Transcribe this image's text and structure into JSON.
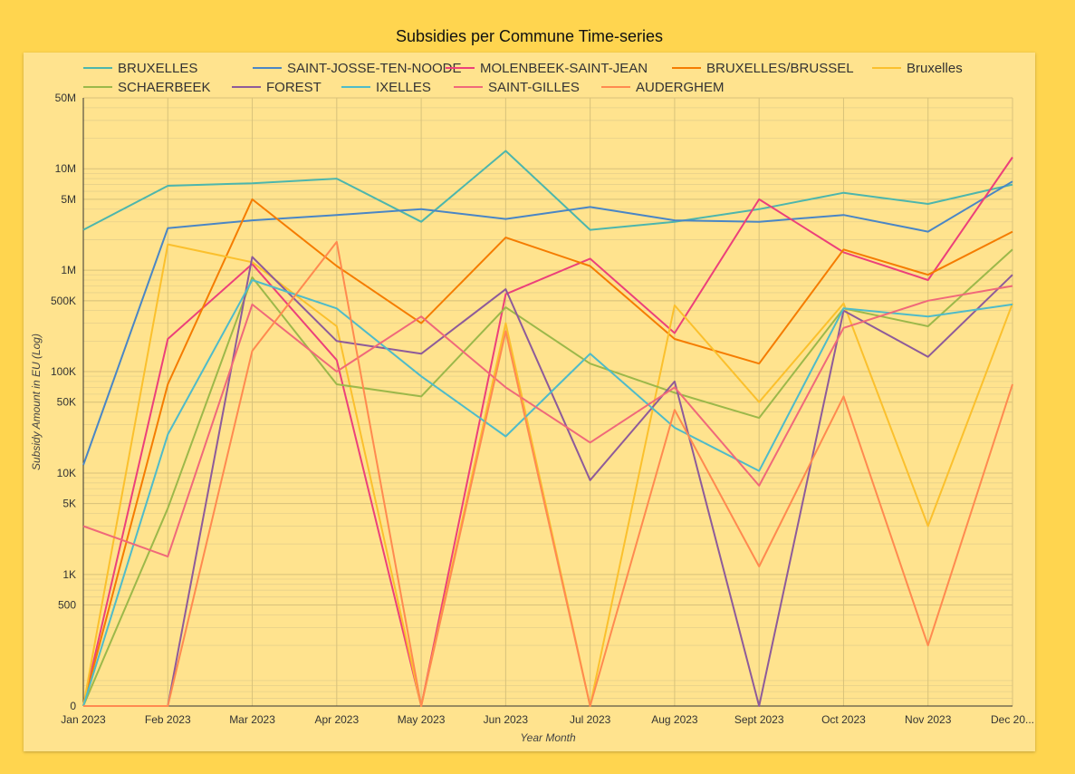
{
  "title": "Subsidies per Commune Time-series",
  "chart_data": {
    "type": "line",
    "title": "Subsidies per Commune Time-series",
    "xlabel": "Year Month",
    "ylabel": "Subsidy Amount in EU (Log)",
    "yscale": "log",
    "ylim": [
      0,
      50000000
    ],
    "grid": true,
    "legend_position": "top",
    "x": [
      "Jan 2023",
      "Feb 2023",
      "Mar 2023",
      "Apr 2023",
      "May 2023",
      "Jun 2023",
      "Jul 2023",
      "Aug 2023",
      "Sept 2023",
      "Oct 2023",
      "Nov 2023",
      "Dec 20..."
    ],
    "yticks": [
      {
        "value": 50000000,
        "label": "50M"
      },
      {
        "value": 10000000,
        "label": "10M"
      },
      {
        "value": 5000000,
        "label": "5M"
      },
      {
        "value": 1000000,
        "label": "1M"
      },
      {
        "value": 500000,
        "label": "500K"
      },
      {
        "value": 100000,
        "label": "100K"
      },
      {
        "value": 50000,
        "label": "50K"
      },
      {
        "value": 10000,
        "label": "10K"
      },
      {
        "value": 5000,
        "label": "5K"
      },
      {
        "value": 1000,
        "label": "1K"
      },
      {
        "value": 500,
        "label": "500"
      },
      {
        "value": 0,
        "label": "0"
      }
    ],
    "series": [
      {
        "name": "BRUXELLES",
        "color": "#4DB6AC",
        "values": [
          2500000,
          6800000,
          7200000,
          8000000,
          3000000,
          15000000,
          2500000,
          3000000,
          4000000,
          5800000,
          4500000,
          7000000
        ]
      },
      {
        "name": "SAINT-JOSSE-TEN-NOODE",
        "color": "#4A86C5",
        "values": [
          12000,
          2600000,
          3100000,
          3500000,
          4000000,
          3200000,
          4200000,
          3100000,
          3000000,
          3500000,
          2400000,
          7500000
        ]
      },
      {
        "name": "MOLENBEEK-SAINT-JEAN",
        "color": "#EC407A",
        "values": [
          0,
          210000,
          1150000,
          130000,
          0,
          580000,
          1300000,
          240000,
          5000000,
          1500000,
          800000,
          13000000
        ]
      },
      {
        "name": "BRUXELLES/BRUSSEL",
        "color": "#F57C00",
        "values": [
          0,
          75000,
          5000000,
          1100000,
          300000,
          2100000,
          1100000,
          210000,
          120000,
          1600000,
          900000,
          2400000
        ]
      },
      {
        "name": "Bruxelles",
        "color": "#FBC02D",
        "values": [
          0,
          1800000,
          1200000,
          280000,
          0,
          300000,
          0,
          450000,
          50000,
          470000,
          3000,
          470000
        ]
      },
      {
        "name": "SCHAERBEEK",
        "color": "#9CB84A",
        "values": [
          0,
          4500,
          850000,
          75000,
          57000,
          430000,
          120000,
          62000,
          35000,
          420000,
          280000,
          1600000
        ]
      },
      {
        "name": "FOREST",
        "color": "#8E5B9A",
        "values": [
          0,
          0,
          1350000,
          200000,
          150000,
          650000,
          8500,
          80000,
          0,
          400000,
          140000,
          900000
        ]
      },
      {
        "name": "IXELLES",
        "color": "#4FBBC9",
        "values": [
          0,
          24000,
          800000,
          420000,
          90000,
          23000,
          150000,
          28000,
          10500,
          420000,
          350000,
          460000
        ]
      },
      {
        "name": "SAINT-GILLES",
        "color": "#F0697A",
        "values": [
          3000,
          1500,
          460000,
          100000,
          350000,
          70000,
          20000,
          70000,
          7500,
          270000,
          500000,
          700000
        ]
      },
      {
        "name": "AUDERGHEM",
        "color": "#FF8A50",
        "values": [
          0,
          0,
          160000,
          1900000,
          0,
          250000,
          0,
          42000,
          1200,
          57000,
          200,
          75000
        ]
      }
    ]
  }
}
